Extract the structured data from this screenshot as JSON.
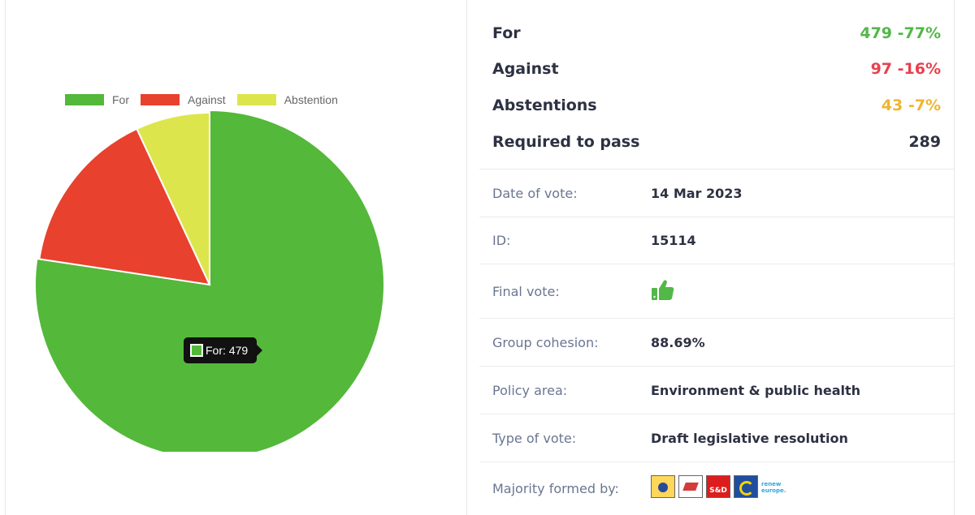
{
  "chart_data": {
    "type": "pie",
    "legend": [
      "For",
      "Against",
      "Abstention"
    ],
    "values": [
      479,
      97,
      43
    ],
    "colors": [
      "#54b83a",
      "#e8412e",
      "#dde54d"
    ],
    "legend_position": "top",
    "tooltip": {
      "series": "For",
      "text": "For: 479"
    }
  },
  "summary": [
    {
      "label": "For",
      "value": "479 -77%",
      "color": "#52b848"
    },
    {
      "label": "Against",
      "value": "97 -16%",
      "color": "#e8404d"
    },
    {
      "label": "Abstentions",
      "value": "43 -7%",
      "color": "#efb52d"
    },
    {
      "label": "Required to pass",
      "value": "289",
      "color": "#2d3142"
    }
  ],
  "details": {
    "date_label": "Date of vote:",
    "date_value": "14 Mar 2023",
    "id_label": "ID:",
    "id_value": "15114",
    "final_label": "Final vote:",
    "final_icon": "thumbs-up-icon",
    "cohesion_label": "Group cohesion:",
    "cohesion_value": "88.69%",
    "policy_label": "Policy area:",
    "policy_value": "Environment & public health",
    "type_label": "Type of vote:",
    "type_value": "Draft legislative resolution",
    "majority_label": "Majority formed by:",
    "majority_groups": [
      "epp-logo",
      "ecr-logo",
      "sd-logo",
      "greens-logo",
      "renew-logo"
    ],
    "sd_logo_text": "S&D",
    "renew_logo_text": "renew europe."
  }
}
